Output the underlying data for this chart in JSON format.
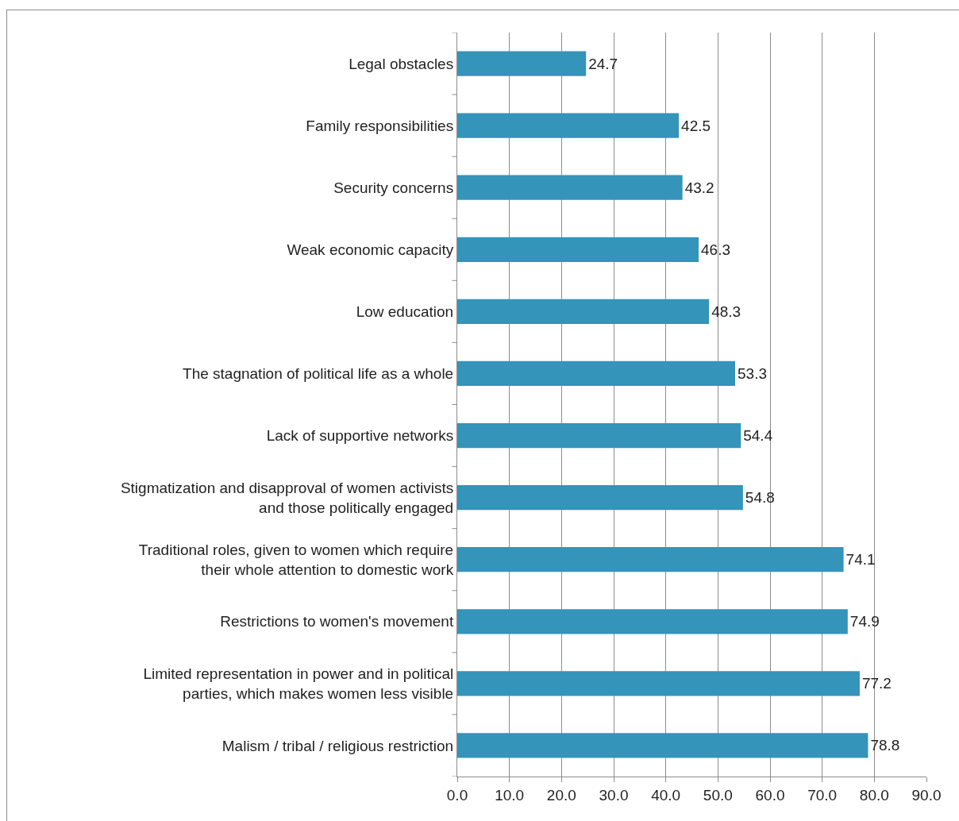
{
  "chart_data": {
    "type": "bar",
    "orientation": "horizontal",
    "categories": [
      "Legal obstacles",
      "Family responsibilities",
      "Security concerns",
      "Weak economic capacity",
      "Low education",
      "The stagnation of political life as a whole",
      "Lack of supportive networks",
      "Stigmatization and disapproval of women activists and those politically engaged",
      "Traditional roles, given to women which require their whole attention to domestic work",
      "Restrictions to women's movement",
      "Limited representation in power and in political parties, which makes women less visible",
      "Malism / tribal / religious restriction"
    ],
    "values": [
      24.7,
      42.5,
      43.2,
      46.3,
      48.3,
      53.3,
      54.4,
      54.8,
      74.1,
      74.9,
      77.2,
      78.8
    ],
    "color": "#3494ba",
    "xlim": [
      0,
      90
    ],
    "xticks": [
      {
        "value": 0,
        "label": "0.0"
      },
      {
        "value": 10,
        "label": "10.0"
      },
      {
        "value": 20,
        "label": "20.0"
      },
      {
        "value": 30,
        "label": "30.0"
      },
      {
        "value": 40,
        "label": "40.0"
      },
      {
        "value": 50,
        "label": "50.0"
      },
      {
        "value": 60,
        "label": "60.0"
      },
      {
        "value": 70,
        "label": "70.0"
      },
      {
        "value": 80,
        "label": "80.0"
      },
      {
        "value": 90,
        "label": "90.0"
      }
    ],
    "grid": "x",
    "data_labels": true
  }
}
